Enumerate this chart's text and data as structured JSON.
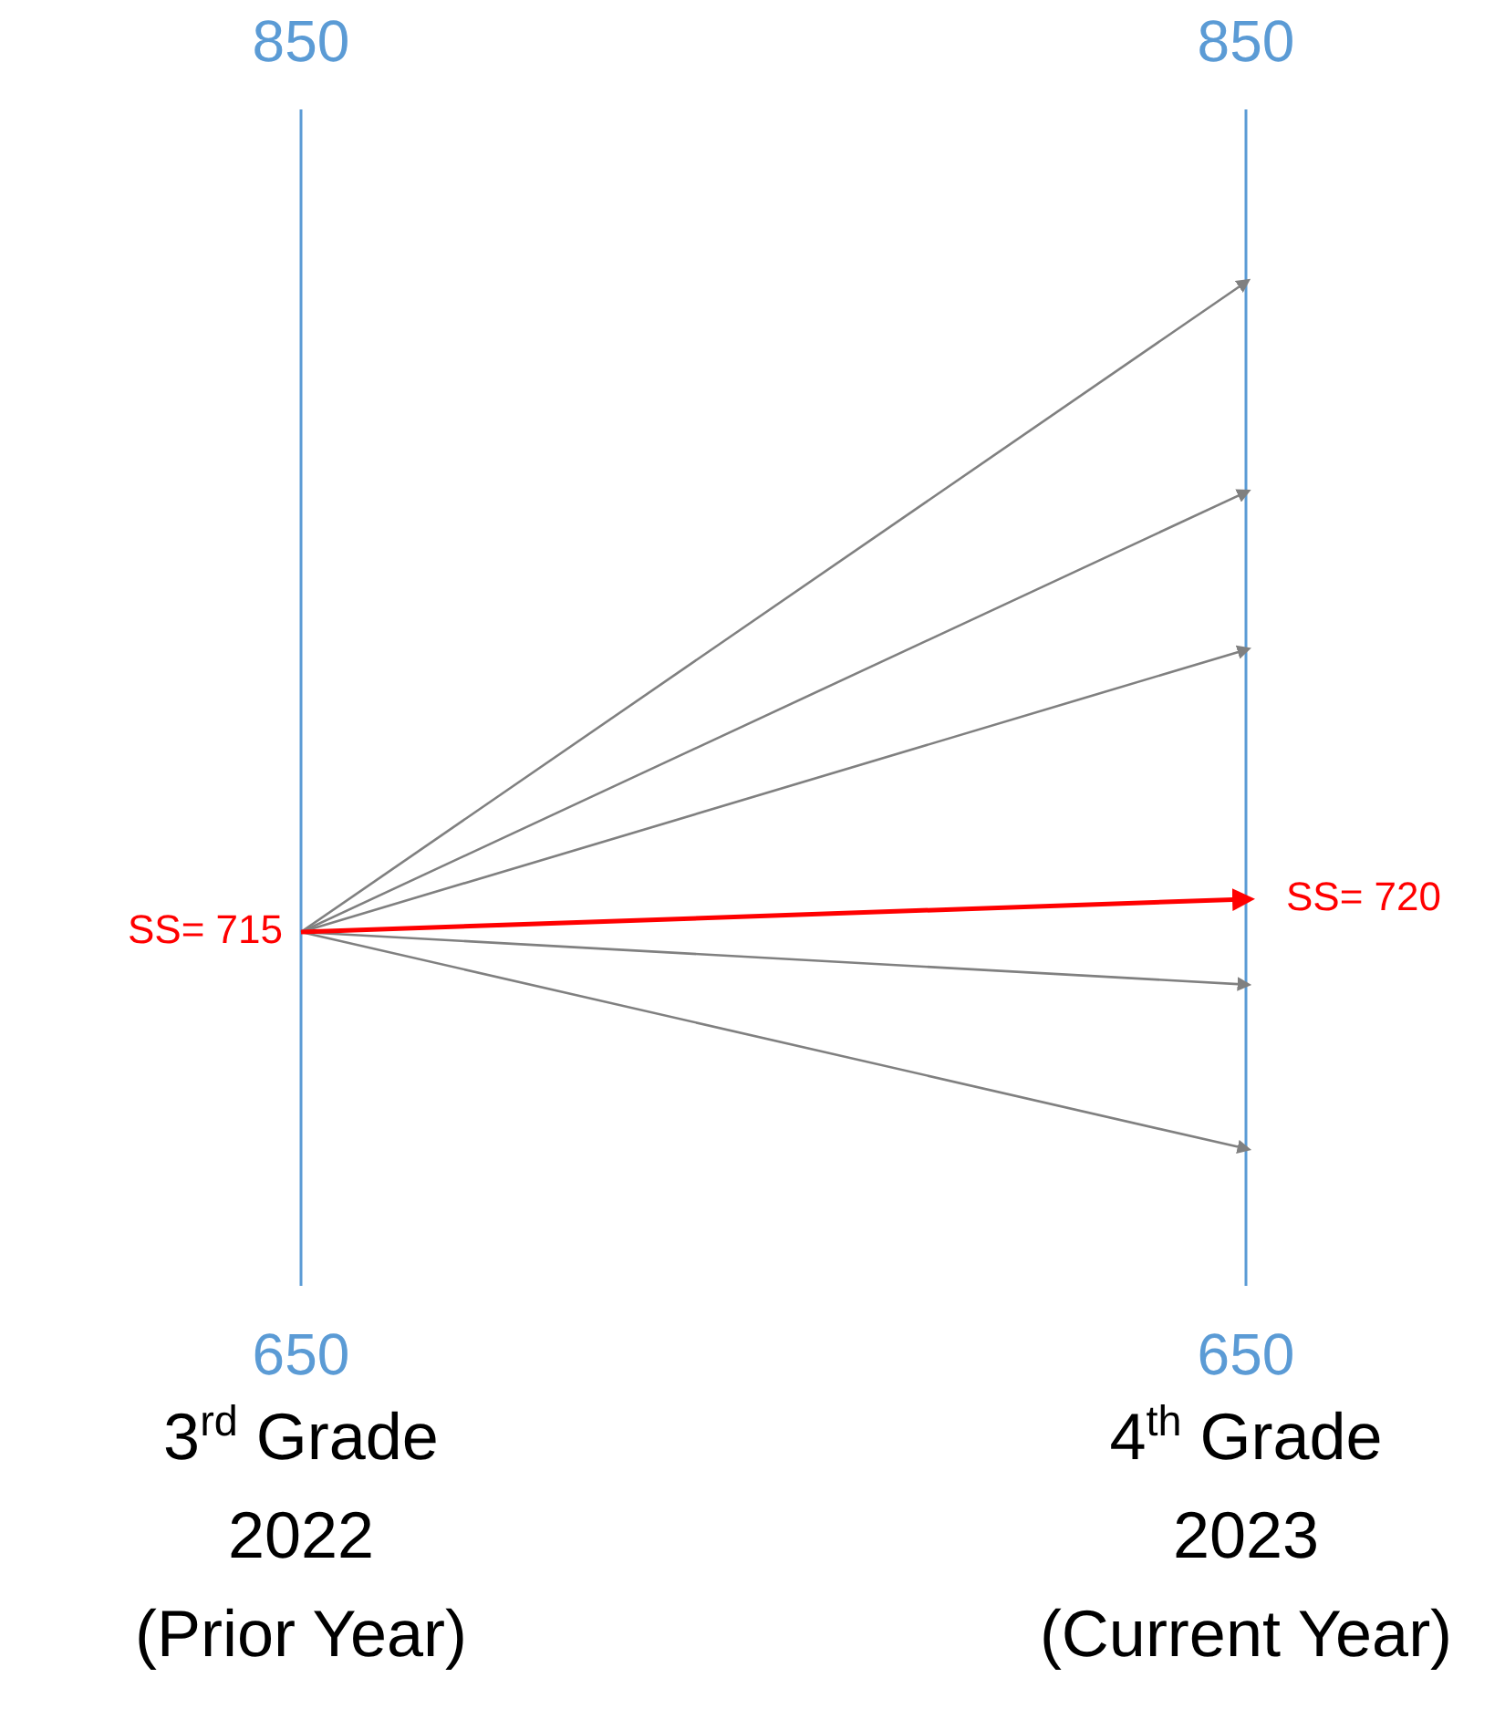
{
  "chart_data": {
    "type": "line",
    "categories": [
      "3$^{rd}$ Grade\n2022\n(Prior Year)",
      "4$^{th}$ Grade\n2023\n(Current Year)"
    ],
    "ylim": [
      650,
      850
    ],
    "yticks": [
      650,
      850
    ],
    "y2lim": [
      650,
      850
    ],
    "y2ticks": [
      650,
      850
    ],
    "grid": "x",
    "series": [
      {
        "color": "#808080",
        "values": [
          715,
          814
        ]
      },
      {
        "color": "#808080",
        "values": [
          715,
          782
        ]
      },
      {
        "color": "#808080",
        "values": [
          715,
          758
        ]
      },
      {
        "color": "#808080",
        "values": [
          715,
          707
        ]
      },
      {
        "color": "#808080",
        "values": [
          715,
          682
        ]
      },
      {
        "color": "#ff0000",
        "values": [
          715,
          720
        ],
        "value_labels": [
          "SS= 715",
          "SS= 720"
        ]
      }
    ]
  }
}
